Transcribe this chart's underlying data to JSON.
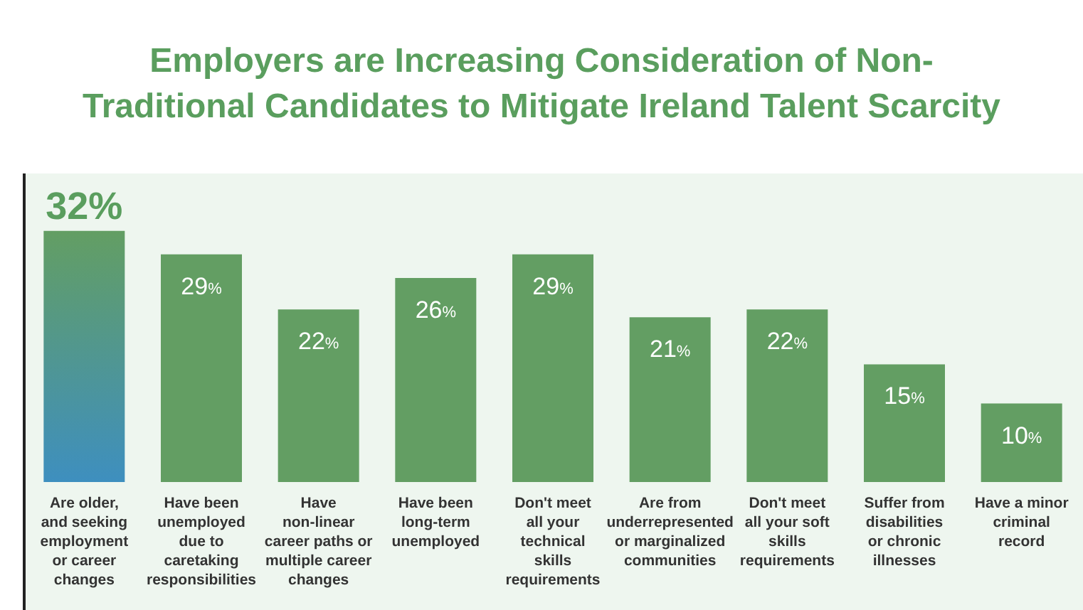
{
  "chart_data": {
    "type": "bar",
    "title": "Employers are Increasing Consideration of Non-\nTraditional Candidates to Mitigate Ireland Talent Scarcity",
    "categories": [
      "Are older,\nand seeking\nemployment\nor career\nchanges",
      "Have been\nunemployed\ndue to\ncaretaking\nresponsibilities",
      "Have\nnon-linear\ncareer paths or\nmultiple career\nchanges",
      "Have been\nlong-term\nunemployed",
      "Don't meet\nall your\ntechnical\nskills\nrequirements",
      "Are from\nunderrepresented\nor marginalized\ncommunities",
      "Don't meet\nall your soft\nskills\nrequirements",
      "Suffer from\ndisabilities\nor chronic\nillnesses",
      "Have a minor\ncriminal\nrecord"
    ],
    "values": [
      32,
      29,
      22,
      26,
      29,
      21,
      22,
      15,
      10
    ],
    "value_labels": [
      "32%",
      "29%",
      "22%",
      "26%",
      "29%",
      "21%",
      "22%",
      "15%",
      "10%"
    ],
    "colors": [
      "#3e8fbf",
      "#639e63",
      "#639e63",
      "#639e63",
      "#639e63",
      "#639e63",
      "#639e63",
      "#639e63",
      "#639e63"
    ]
  }
}
